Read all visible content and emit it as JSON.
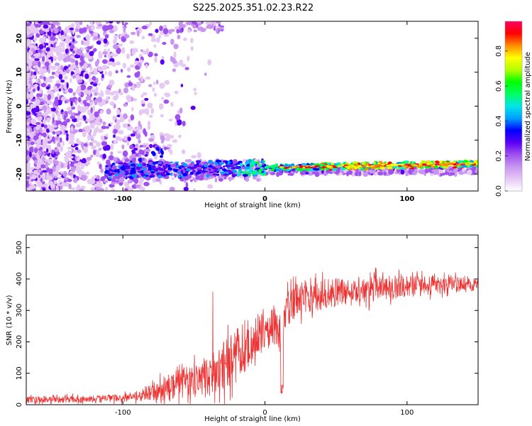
{
  "title": "S225.2025.351.02.23.R22",
  "chart_data": [
    {
      "type": "heatmap",
      "xlabel": "Height of straight line (km)",
      "ylabel": "Frequency (Hz)",
      "xlim": [
        -168,
        150
      ],
      "ylim": [
        -25,
        25
      ],
      "xticks": [
        -100,
        0,
        100
      ],
      "yticks": [
        -20,
        -10,
        0,
        10,
        20
      ],
      "colorbar": {
        "label": "Normalized spectral amplitude",
        "range": [
          0,
          0.97
        ],
        "ticks": [
          0.0,
          0.2,
          0.4,
          0.6,
          0.8
        ],
        "colors": [
          "#ffffff",
          "#e6c8f5",
          "#c896f0",
          "#a050f0",
          "#5a00f5",
          "#0000ff",
          "#00a0ff",
          "#00e6e6",
          "#00ff64",
          "#00ff00",
          "#b4ff00",
          "#ffff00",
          "#ff8c00",
          "#ff0000",
          "#ff0064"
        ]
      },
      "features": {
        "noise_region_x": [
          -168,
          -80
        ],
        "ridge_frequency_hz": [
          -20,
          -17
        ],
        "ridge_x": [
          -112,
          150
        ]
      }
    },
    {
      "type": "line",
      "xlabel": "Height of straight line (km)",
      "ylabel": "SNR (10 * v/v)",
      "xlim": [
        -168,
        150
      ],
      "ylim": [
        0,
        540
      ],
      "xticks": [
        -100,
        0,
        100
      ],
      "yticks": [
        0,
        100,
        200,
        300,
        400,
        500
      ],
      "color": "#ee3333",
      "envelope": {
        "x": [
          -168,
          -120,
          -100,
          -85,
          -75,
          -60,
          -45,
          -35,
          -25,
          -15,
          -5,
          5,
          10,
          15,
          25,
          40,
          60,
          80,
          100,
          125,
          150
        ],
        "mean": [
          16,
          18,
          22,
          32,
          50,
          65,
          85,
          100,
          140,
          185,
          230,
          255,
          245,
          300,
          345,
          350,
          360,
          370,
          375,
          380,
          385
        ],
        "spread": [
          12,
          12,
          14,
          22,
          40,
          55,
          65,
          80,
          90,
          95,
          85,
          75,
          80,
          60,
          60,
          55,
          50,
          45,
          40,
          30,
          25
        ]
      }
    }
  ]
}
